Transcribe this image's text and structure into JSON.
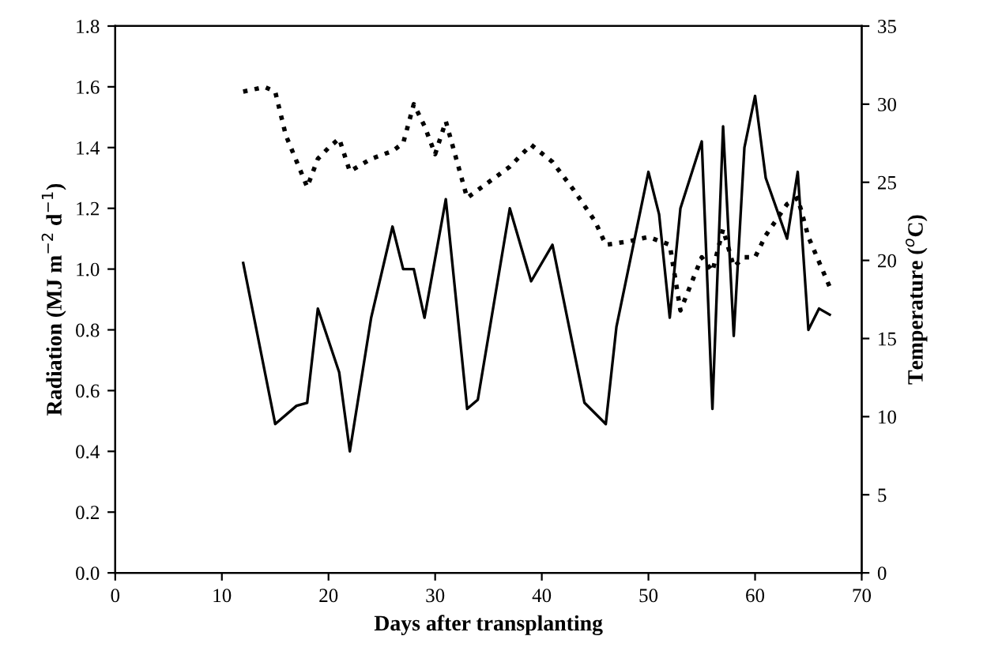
{
  "chart_data": {
    "type": "line",
    "xlabel": "Days after transplanting",
    "ylabel": "Radiation (MJ m$^{−2}$ d$^{−1}$)",
    "y2label": "Temperature ($^{o}$C)",
    "xlim": [
      0,
      70
    ],
    "xticks": [
      0,
      10,
      20,
      30,
      40,
      50,
      60,
      70
    ],
    "ylim": [
      0,
      1.8
    ],
    "yticks": [
      {
        "value": 0,
        "label": "0.0"
      },
      0.2,
      0.4,
      0.6,
      0.8,
      {
        "value": 1,
        "label": "1.0"
      },
      1.2,
      1.4,
      1.6,
      1.8
    ],
    "y2lim": [
      0,
      35
    ],
    "y2ticks": [
      0,
      5,
      10,
      15,
      20,
      25,
      30,
      35
    ],
    "grid": false,
    "legend": false,
    "marker": "none",
    "series": [
      {
        "color": "#000000",
        "line_style": "solid",
        "x": [
          12,
          15,
          17,
          18,
          19,
          21,
          22,
          24,
          26,
          27,
          28,
          29,
          31,
          33,
          34,
          37,
          39,
          41,
          44,
          46,
          47,
          50,
          51,
          52,
          53,
          55,
          56,
          57,
          58,
          59,
          60,
          61,
          63,
          64,
          65,
          66,
          67
        ],
        "values": [
          1.02,
          0.49,
          0.55,
          0.56,
          0.87,
          0.66,
          0.4,
          0.84,
          1.14,
          1.0,
          1.0,
          0.84,
          1.23,
          0.54,
          0.57,
          1.2,
          0.96,
          1.08,
          0.56,
          0.49,
          0.81,
          1.32,
          1.18,
          0.84,
          1.2,
          1.42,
          0.54,
          1.47,
          0.78,
          1.4,
          1.57,
          1.3,
          1.1,
          1.32,
          0.8,
          0.87,
          0.85
        ]
      },
      {
        "color": "#000000",
        "line_style": "dotted",
        "axis": "y2",
        "x": [
          12,
          14,
          15,
          16,
          18,
          19,
          20,
          21,
          22,
          24,
          26,
          27,
          28,
          29,
          30,
          31,
          33,
          35,
          37,
          39,
          41,
          43,
          45,
          46,
          48,
          50,
          52,
          53,
          55,
          56,
          57,
          58,
          59,
          60,
          61,
          63,
          64,
          65,
          67
        ],
        "values": [
          30.8,
          31.1,
          30.8,
          28,
          24.7,
          26.5,
          27.2,
          27.8,
          25.7,
          26.5,
          27,
          27.5,
          30,
          28.6,
          26.8,
          28.9,
          24,
          25,
          26,
          27.4,
          26.3,
          24.5,
          22.5,
          21,
          21.2,
          21.5,
          21,
          16.8,
          20.2,
          19.3,
          22,
          19.6,
          20.2,
          20.2,
          21.6,
          23.6,
          24,
          21.5,
          18.3
        ]
      }
    ]
  }
}
